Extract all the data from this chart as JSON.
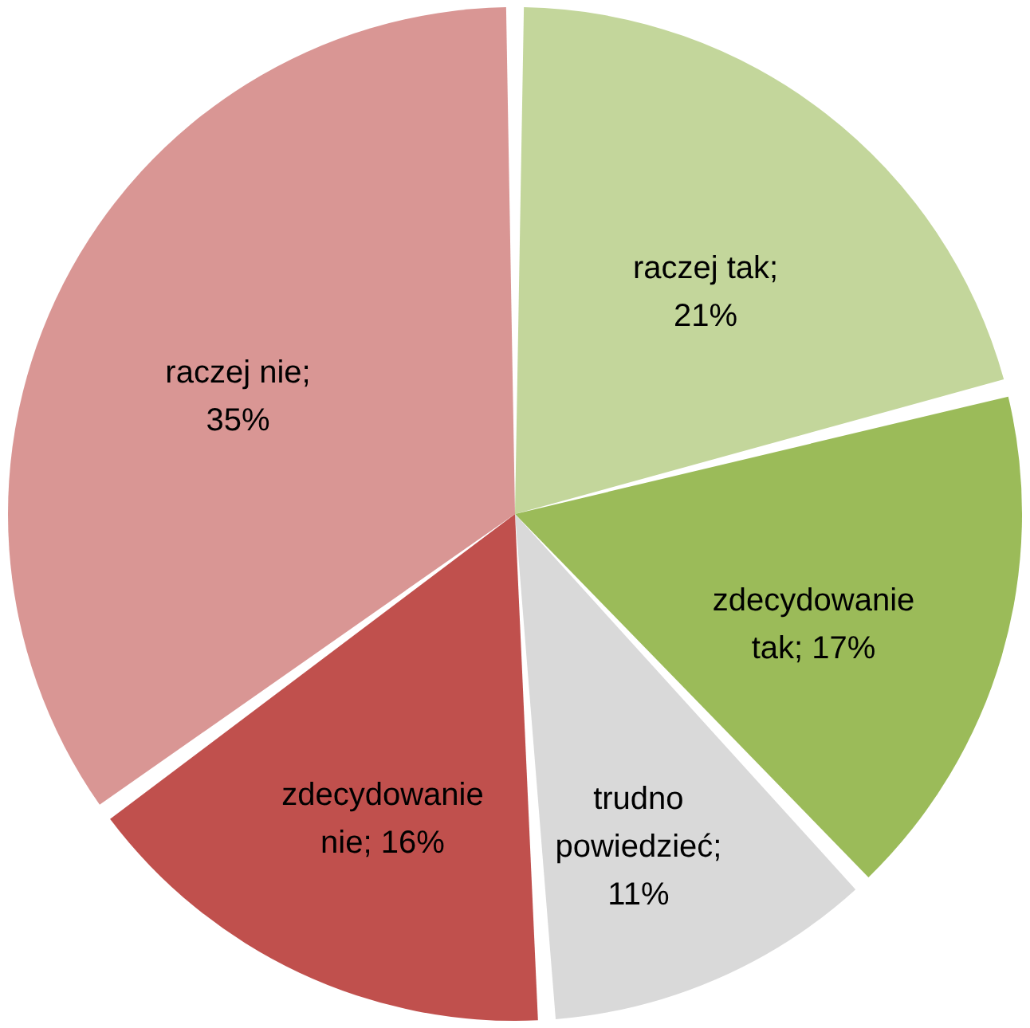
{
  "chart_data": {
    "type": "pie",
    "categories": [
      "raczej tak",
      "zdecydowanie tak",
      "trudno powiedzieć",
      "zdecydowanie nie",
      "raczej nie"
    ],
    "values": [
      21,
      17,
      11,
      16,
      35
    ],
    "colors": [
      "#c3d69b",
      "#9bbb59",
      "#d9d9d9",
      "#c0504d",
      "#d99694"
    ],
    "value_labels": [
      "; 21%",
      "; 17%",
      "; 11%",
      "; 16%",
      "; 35%"
    ]
  }
}
